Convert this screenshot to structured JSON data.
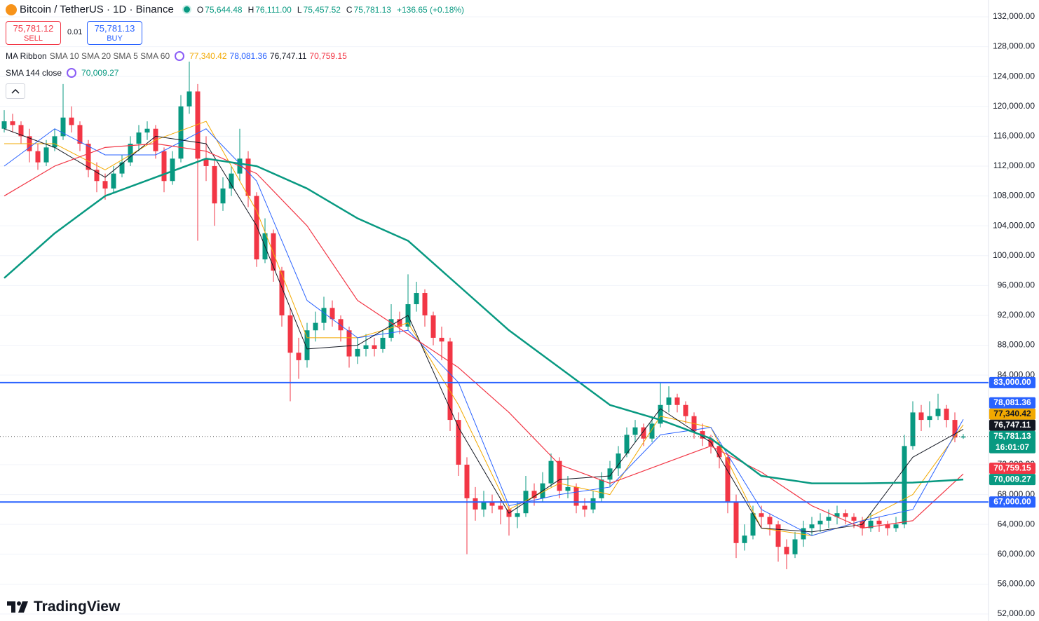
{
  "header": {
    "symbol": "Bitcoin / TetherUS · 1D · Binance",
    "ohlc_prefix": [
      "O",
      "H",
      "L",
      "C"
    ],
    "change": "+136.65 (+0.18%)",
    "sell_price": "75,781.12",
    "sell": "SELL",
    "spread": "0.01",
    "buy_price": "75,781.13",
    "buy": "BUY",
    "ribbon_name": "MA Ribbon",
    "ribbon_params": "SMA 10 SMA 20 SMA 5 SMA 60",
    "sma_name": "SMA 144 close",
    "logo": "TradingView"
  },
  "chart_data": {
    "type": "candlestick",
    "up_color": "#089981",
    "down_color": "#f23645",
    "grid": true,
    "ylim": [
      51060,
      134250
    ],
    "yticks": [
      {
        "value": 52000,
        "label": "52,000.00"
      },
      {
        "value": 56000,
        "label": "56,000.00"
      },
      {
        "value": 60000,
        "label": "60,000.00"
      },
      {
        "value": 64000,
        "label": "64,000.00"
      },
      {
        "value": 68000,
        "label": "68,000.00"
      },
      {
        "value": 72000,
        "label": "72,000.00"
      },
      {
        "value": 84000,
        "label": "84,000.00"
      },
      {
        "value": 88000,
        "label": "88,000.00"
      },
      {
        "value": 92000,
        "label": "92,000.00"
      },
      {
        "value": 96000,
        "label": "96,000.00"
      },
      {
        "value": 100000,
        "label": "100,000.00"
      },
      {
        "value": 104000,
        "label": "104,000.00"
      },
      {
        "value": 108000,
        "label": "108,000.00"
      },
      {
        "value": 112000,
        "label": "112,000.00"
      },
      {
        "value": 116000,
        "label": "116,000.00"
      },
      {
        "value": 120000,
        "label": "120,000.00"
      },
      {
        "value": 124000,
        "label": "124,000.00"
      },
      {
        "value": 128000,
        "label": "128,000.00"
      },
      {
        "value": 132000,
        "label": "132,000.00"
      }
    ],
    "candles": [
      [
        117000,
        119500,
        116500,
        118000
      ],
      [
        118000,
        119000,
        116500,
        117500
      ],
      [
        117500,
        118000,
        115000,
        116000
      ],
      [
        116000,
        117000,
        112500,
        114000
      ],
      [
        114000,
        115000,
        111500,
        112500
      ],
      [
        112500,
        115500,
        112000,
        114500
      ],
      [
        114500,
        117000,
        114000,
        116000
      ],
      [
        116000,
        123000,
        115500,
        118500
      ],
      [
        118500,
        120000,
        116500,
        117500
      ],
      [
        117500,
        118000,
        114000,
        115000
      ],
      [
        115000,
        115500,
        110500,
        111500
      ],
      [
        111500,
        112500,
        108500,
        110000
      ],
      [
        110000,
        111000,
        107500,
        109000
      ],
      [
        109000,
        112000,
        108500,
        111000
      ],
      [
        111000,
        113500,
        110500,
        112500
      ],
      [
        112500,
        116000,
        112000,
        115000
      ],
      [
        115000,
        117500,
        114000,
        116500
      ],
      [
        116500,
        118000,
        115500,
        117000
      ],
      [
        117000,
        117500,
        113000,
        114000
      ],
      [
        114000,
        114500,
        108500,
        110000
      ],
      [
        110000,
        114000,
        109500,
        113000
      ],
      [
        113000,
        121500,
        112500,
        120000
      ],
      [
        120000,
        126000,
        119000,
        122000
      ],
      [
        122000,
        123000,
        102000,
        113000
      ],
      [
        113000,
        116000,
        110000,
        112000
      ],
      [
        112000,
        113000,
        104000,
        107000
      ],
      [
        107000,
        110500,
        106000,
        109000
      ],
      [
        109000,
        112000,
        108000,
        111000
      ],
      [
        111000,
        117000,
        110000,
        113000
      ],
      [
        113000,
        114000,
        106500,
        108000
      ],
      [
        108000,
        108500,
        98500,
        99500
      ],
      [
        99500,
        105000,
        99000,
        103000
      ],
      [
        103000,
        103500,
        96500,
        98000
      ],
      [
        98000,
        98500,
        90500,
        92000
      ],
      [
        92000,
        93000,
        80500,
        87000
      ],
      [
        87000,
        89000,
        83500,
        86000
      ],
      [
        86000,
        91000,
        85000,
        90000
      ],
      [
        90000,
        92500,
        88500,
        91000
      ],
      [
        91000,
        94500,
        90000,
        93000
      ],
      [
        93000,
        94000,
        90500,
        91500
      ],
      [
        91500,
        92000,
        88500,
        90000
      ],
      [
        90000,
        90500,
        85000,
        86500
      ],
      [
        86500,
        89000,
        85500,
        87500
      ],
      [
        87500,
        89500,
        86500,
        88000
      ],
      [
        88000,
        89000,
        86500,
        87500
      ],
      [
        87500,
        90000,
        87000,
        89000
      ],
      [
        89000,
        93500,
        88500,
        91500
      ],
      [
        91500,
        92500,
        89500,
        90500
      ],
      [
        90500,
        97500,
        90000,
        93500
      ],
      [
        93500,
        96500,
        92500,
        95000
      ],
      [
        95000,
        95500,
        90500,
        92000
      ],
      [
        92000,
        92500,
        88000,
        89000
      ],
      [
        89000,
        90500,
        86000,
        88500
      ],
      [
        88500,
        89000,
        76500,
        78000
      ],
      [
        78000,
        79000,
        70500,
        72000
      ],
      [
        72000,
        73000,
        60000,
        67500
      ],
      [
        67500,
        69000,
        64500,
        66000
      ],
      [
        66000,
        68500,
        65000,
        67000
      ],
      [
        67000,
        68000,
        65500,
        66500
      ],
      [
        66500,
        67500,
        64000,
        66000
      ],
      [
        66000,
        66500,
        62500,
        65000
      ],
      [
        65000,
        67000,
        63500,
        65500
      ],
      [
        65500,
        70500,
        65000,
        68500
      ],
      [
        68500,
        69500,
        66500,
        67500
      ],
      [
        67500,
        71000,
        67000,
        69500
      ],
      [
        69500,
        73500,
        69000,
        72500
      ],
      [
        72500,
        73000,
        67500,
        68500
      ],
      [
        68500,
        70500,
        67500,
        69000
      ],
      [
        69000,
        69500,
        65500,
        66500
      ],
      [
        66500,
        67500,
        65000,
        66000
      ],
      [
        66000,
        68500,
        65500,
        67500
      ],
      [
        67500,
        71000,
        67000,
        70000
      ],
      [
        70000,
        72500,
        69000,
        71500
      ],
      [
        71500,
        74500,
        70500,
        73500
      ],
      [
        73500,
        77000,
        73000,
        76000
      ],
      [
        76000,
        78000,
        75000,
        77000
      ],
      [
        77000,
        77500,
        74500,
        75500
      ],
      [
        75500,
        78500,
        75000,
        77500
      ],
      [
        77500,
        83000,
        77000,
        80000
      ],
      [
        80000,
        82500,
        79000,
        81000
      ],
      [
        81000,
        81500,
        79000,
        80000
      ],
      [
        80000,
        80500,
        77500,
        78500
      ],
      [
        78500,
        79000,
        75500,
        76500
      ],
      [
        76500,
        77500,
        74500,
        75500
      ],
      [
        75500,
        76000,
        73500,
        74500
      ],
      [
        74500,
        75000,
        71500,
        73000
      ],
      [
        73000,
        73500,
        65500,
        67000
      ],
      [
        67000,
        68000,
        59500,
        61500
      ],
      [
        61500,
        64000,
        60500,
        62500
      ],
      [
        62500,
        66500,
        62000,
        65500
      ],
      [
        65500,
        66500,
        63500,
        65000
      ],
      [
        65000,
        65500,
        62500,
        64000
      ],
      [
        64000,
        64500,
        59000,
        61000
      ],
      [
        61000,
        62000,
        58000,
        60000
      ],
      [
        60000,
        63000,
        59500,
        62000
      ],
      [
        62000,
        64500,
        61000,
        63500
      ],
      [
        63500,
        65000,
        62500,
        64000
      ],
      [
        64000,
        65500,
        63000,
        64500
      ],
      [
        64500,
        66000,
        63500,
        65000
      ],
      [
        65000,
        66500,
        64000,
        65500
      ],
      [
        65500,
        66000,
        64000,
        65000
      ],
      [
        65000,
        65500,
        63500,
        64500
      ],
      [
        64500,
        65000,
        62500,
        63500
      ],
      [
        63500,
        65500,
        63000,
        64500
      ],
      [
        64500,
        65000,
        63000,
        64000
      ],
      [
        64000,
        64500,
        62500,
        63500
      ],
      [
        63500,
        65000,
        63000,
        64000
      ],
      [
        64000,
        76000,
        63500,
        74500
      ],
      [
        74500,
        80500,
        74000,
        79000
      ],
      [
        79000,
        80000,
        76500,
        78000
      ],
      [
        78000,
        80500,
        77000,
        78500
      ],
      [
        78500,
        81500,
        78000,
        79500
      ],
      [
        79500,
        80000,
        77000,
        78000
      ],
      [
        78000,
        79000,
        75000,
        75644.48
      ],
      [
        75644.48,
        76111.0,
        75457.52,
        75781.13
      ]
    ],
    "last_labels": [
      "75,644.48",
      "76,111.00",
      "75,457.52",
      "75,781.13"
    ],
    "countdown": "16:01:07",
    "ma_index": [
      0,
      6,
      12,
      18,
      24,
      30,
      36,
      42,
      48,
      54,
      60,
      66,
      72,
      78,
      84,
      90,
      96,
      102,
      108,
      114
    ],
    "ma_series": [
      {
        "color": "#f2a900",
        "width": 1,
        "values": [
          115000,
          115000,
          111500,
          115500,
          118000,
          106000,
          89000,
          89000,
          91000,
          80000,
          66000,
          69500,
          68000,
          78500,
          77000,
          63500,
          62500,
          64500,
          68000,
          77340.42
        ],
        "last_label": "77,340.42"
      },
      {
        "color": "#2962ff",
        "width": 1,
        "values": [
          112000,
          117000,
          113500,
          113500,
          117000,
          110000,
          94000,
          89000,
          90000,
          83000,
          66500,
          68000,
          69000,
          76000,
          77000,
          66000,
          62500,
          64500,
          66000,
          78081.36
        ],
        "last_label": "78,081.36"
      },
      {
        "color": "#131722",
        "width": 1,
        "values": [
          117000,
          114500,
          110500,
          116000,
          115000,
          104000,
          87500,
          88000,
          92000,
          77000,
          65500,
          70000,
          70500,
          79500,
          75000,
          63500,
          63000,
          64000,
          73000,
          76747.11
        ],
        "last_label": "76,747.11"
      },
      {
        "color": "#f23645",
        "width": 1.2,
        "values": [
          108000,
          112000,
          114500,
          115000,
          114000,
          111000,
          104000,
          94000,
          89500,
          85000,
          79000,
          72000,
          69500,
          72000,
          74500,
          71000,
          66500,
          63500,
          64500,
          70759.15
        ],
        "last_label": "70,759.15"
      },
      {
        "color": "#089981",
        "width": 2.5,
        "values": [
          97000,
          103000,
          108000,
          110500,
          113000,
          112000,
          109000,
          105000,
          102000,
          96000,
          90000,
          85000,
          80000,
          78000,
          75500,
          70500,
          69500,
          69500,
          69600,
          70009.27
        ],
        "last_label": "70,009.27"
      }
    ],
    "hlines": [
      {
        "value": 83000,
        "label": "83,000.00",
        "color": "#2962ff"
      },
      {
        "value": 67000,
        "label": "67,000.00",
        "color": "#2962ff"
      }
    ]
  }
}
